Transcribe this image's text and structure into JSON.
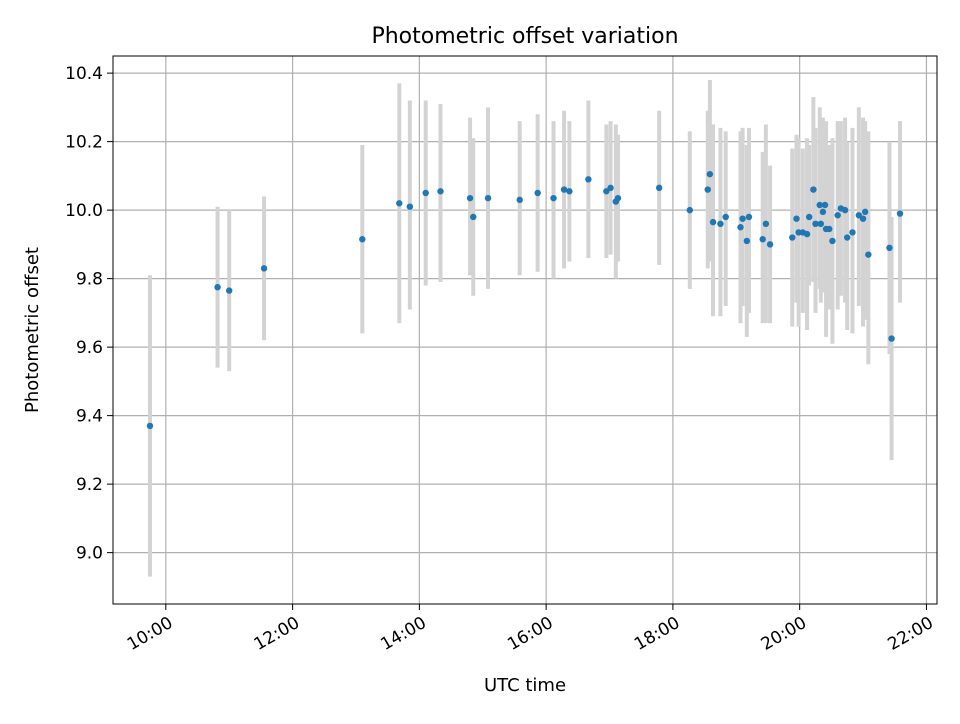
{
  "chart_data": {
    "type": "scatter",
    "title": "Photometric offset variation",
    "xlabel": "UTC time",
    "ylabel": "Photometric offset",
    "xlim": [
      "09:10",
      "22:10"
    ],
    "ylim": [
      8.85,
      10.45
    ],
    "xticks": [
      "10:00",
      "12:00",
      "14:00",
      "16:00",
      "18:00",
      "20:00",
      "22:00"
    ],
    "yticks": [
      "9.0",
      "9.2",
      "9.4",
      "9.6",
      "9.8",
      "10.0",
      "10.2",
      "10.4"
    ],
    "grid": true,
    "colors": {
      "point": "#1f77b4",
      "errorbar": "#d3d3d3",
      "grid": "#b0b0b0"
    },
    "series": [
      {
        "x": [
          "09:45",
          "10:49",
          "11:00",
          "11:33",
          "13:06",
          "13:41",
          "13:51",
          "14:06",
          "14:20",
          "14:48",
          "14:51",
          "15:05",
          "15:35",
          "15:52",
          "16:07",
          "16:17",
          "16:22",
          "16:40",
          "16:57",
          "17:01",
          "17:06",
          "17:08",
          "17:47",
          "18:16",
          "18:33",
          "18:35",
          "18:38",
          "18:45",
          "18:50",
          "19:04",
          "19:06",
          "19:10",
          "19:12",
          "19:25",
          "19:28",
          "19:32",
          "19:53",
          "19:57",
          "19:59",
          "20:03",
          "20:07",
          "20:09",
          "20:13",
          "20:15",
          "20:19",
          "20:20",
          "20:22",
          "20:24",
          "20:25",
          "20:28",
          "20:31",
          "20:36",
          "20:39",
          "20:43",
          "20:45",
          "20:50",
          "20:56",
          "21:00",
          "21:02",
          "21:05",
          "21:25",
          "21:27",
          "21:35"
        ],
        "y": [
          9.37,
          9.775,
          9.765,
          9.83,
          9.915,
          10.02,
          10.01,
          10.05,
          10.055,
          10.035,
          9.98,
          10.035,
          10.03,
          10.05,
          10.035,
          10.06,
          10.055,
          10.09,
          10.055,
          10.065,
          10.025,
          10.035,
          10.065,
          10.0,
          10.06,
          10.105,
          9.965,
          9.96,
          9.98,
          9.95,
          9.975,
          9.91,
          9.98,
          9.915,
          9.96,
          9.9,
          9.92,
          9.975,
          9.935,
          9.935,
          9.93,
          9.98,
          10.06,
          9.96,
          10.015,
          9.96,
          9.995,
          10.015,
          9.945,
          9.945,
          9.91,
          9.985,
          10.005,
          10.0,
          9.92,
          9.935,
          9.985,
          9.975,
          9.995,
          9.87,
          9.89,
          9.625,
          9.99
        ],
        "y_lower": [
          8.93,
          9.54,
          9.53,
          9.62,
          9.64,
          9.67,
          9.71,
          9.78,
          9.79,
          9.81,
          9.75,
          9.77,
          9.81,
          9.82,
          9.8,
          9.83,
          9.85,
          9.86,
          9.86,
          9.87,
          9.8,
          9.85,
          9.84,
          9.77,
          9.83,
          9.85,
          9.69,
          9.69,
          9.72,
          9.67,
          9.72,
          9.63,
          9.7,
          9.67,
          9.67,
          9.67,
          9.66,
          9.73,
          9.66,
          9.7,
          9.65,
          9.78,
          9.79,
          9.7,
          9.77,
          9.73,
          9.76,
          9.76,
          9.63,
          9.71,
          9.61,
          9.71,
          9.75,
          9.73,
          9.65,
          9.64,
          9.72,
          9.66,
          9.68,
          9.55,
          9.58,
          9.27,
          9.73
        ],
        "y_upper": [
          9.81,
          10.01,
          10.0,
          10.04,
          10.19,
          10.37,
          10.32,
          10.32,
          10.31,
          10.27,
          10.21,
          10.3,
          10.26,
          10.28,
          10.26,
          10.29,
          10.26,
          10.32,
          10.25,
          10.26,
          10.25,
          10.22,
          10.29,
          10.23,
          10.29,
          10.38,
          10.25,
          10.24,
          10.23,
          10.23,
          10.24,
          10.19,
          10.24,
          10.17,
          10.25,
          10.13,
          10.18,
          10.22,
          10.21,
          10.18,
          10.21,
          10.19,
          10.33,
          10.24,
          10.3,
          10.2,
          10.27,
          10.25,
          10.26,
          10.19,
          10.21,
          10.26,
          10.26,
          10.27,
          10.2,
          10.24,
          10.3,
          10.27,
          10.26,
          10.23,
          10.2,
          9.98,
          10.26
        ]
      }
    ]
  }
}
